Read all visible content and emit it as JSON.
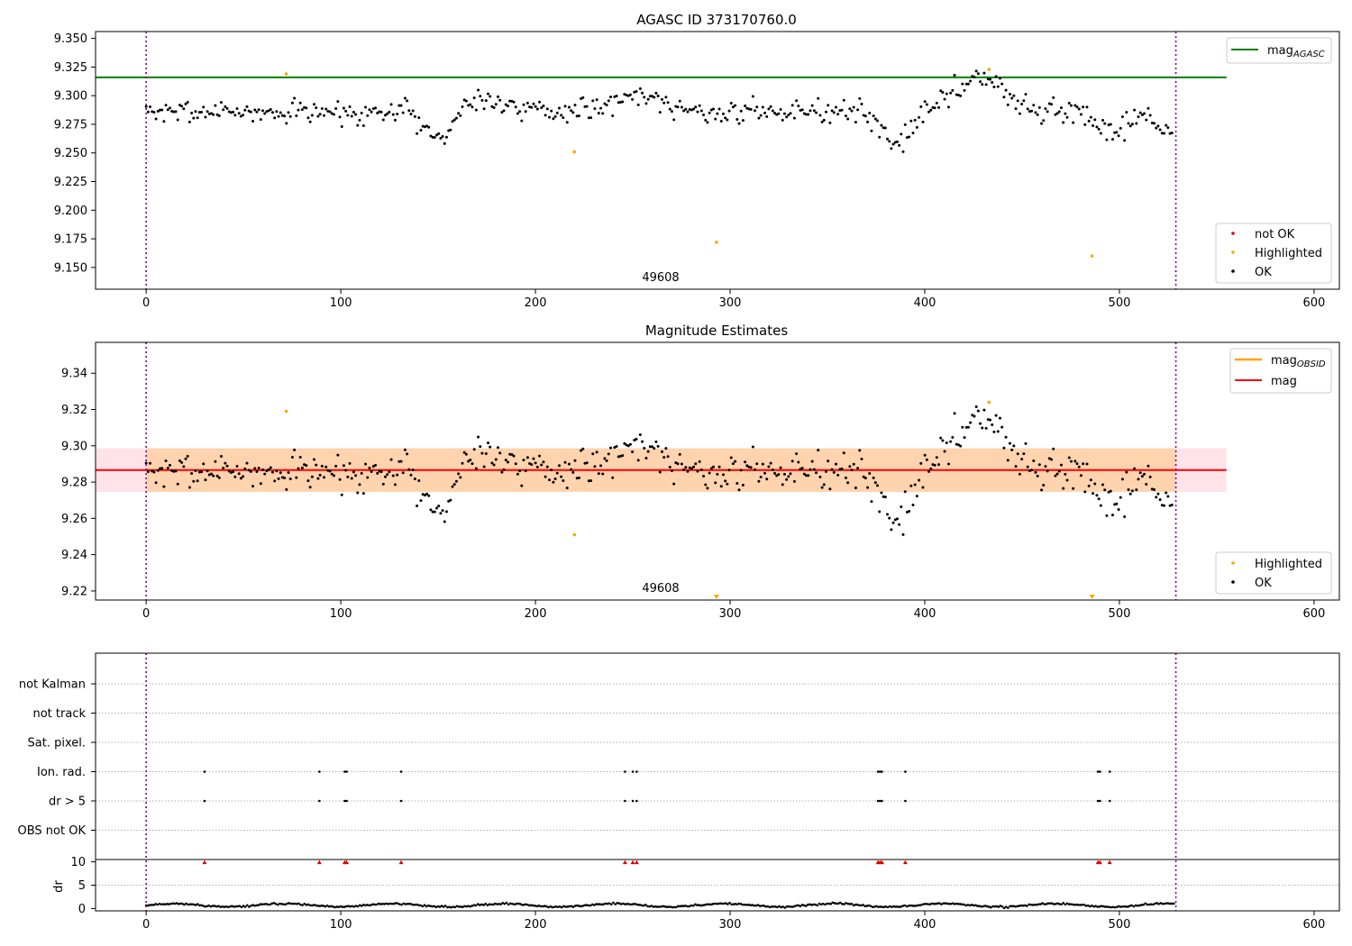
{
  "figure": {
    "title_top": "AGASC ID 373170760.0",
    "title_mid": "Magnitude Estimates",
    "obsid_label": "49608",
    "x_ticks": [
      0,
      100,
      200,
      300,
      400,
      500,
      600
    ],
    "xlim": [
      -26,
      613
    ],
    "boundary_x": [
      0,
      529
    ]
  },
  "chart_data": [
    {
      "type": "scatter",
      "title": "AGASC ID 373170760.0",
      "xlim": [
        -26,
        613
      ],
      "ylim": [
        9.131,
        9.356
      ],
      "y_ticks": [
        9.15,
        9.175,
        9.2,
        9.225,
        9.25,
        9.275,
        9.3,
        9.325,
        9.35
      ],
      "reference_lines": [
        {
          "name": "mag_AGASC",
          "y": 9.316,
          "x_range": [
            -26,
            555
          ],
          "color": "#008000"
        }
      ],
      "highlighted_points": [
        [
          72,
          9.319
        ],
        [
          220,
          9.251
        ],
        [
          293,
          9.172
        ],
        [
          433,
          9.323
        ],
        [
          486,
          9.16
        ]
      ],
      "ok_series": {
        "mean": 9.286,
        "x_range": [
          0,
          527
        ],
        "n": 520,
        "dips": [
          [
            150,
            9.262
          ],
          [
            385,
            9.258
          ],
          [
            497,
            9.262
          ],
          [
            525,
            9.268
          ]
        ],
        "peaks": [
          [
            175,
            9.305
          ],
          [
            252,
            9.312
          ],
          [
            425,
            9.312
          ],
          [
            432,
            9.312
          ]
        ]
      },
      "legend": {
        "location": "lower-right",
        "entries": [
          {
            "label": "not OK",
            "color": "#e00000"
          },
          {
            "label": "Highlighted",
            "color": "#ffa500"
          },
          {
            "label": "OK",
            "color": "#000000"
          }
        ]
      },
      "legend_top": {
        "location": "top-right",
        "entries": [
          {
            "label": "mag",
            "sub": "AGASC",
            "color": "#008000"
          }
        ]
      }
    },
    {
      "type": "scatter",
      "title": "Magnitude Estimates",
      "xlim": [
        -26,
        613
      ],
      "ylim": [
        9.215,
        9.357
      ],
      "y_ticks": [
        9.22,
        9.24,
        9.26,
        9.28,
        9.3,
        9.32,
        9.34
      ],
      "mag_line": {
        "y": 9.2866,
        "color": "#ff0000"
      },
      "mag_band": {
        "y_range": [
          9.2746,
          9.2986
        ],
        "x_range": [
          -26,
          555
        ],
        "color": "#ffc0cb"
      },
      "mag_obsid_band": {
        "y_range": [
          9.2746,
          9.2986
        ],
        "x_range": [
          0,
          529
        ],
        "color": "#ffa500"
      },
      "highlighted_points": [
        [
          72,
          9.319
        ],
        [
          220,
          9.251
        ],
        [
          433,
          9.324
        ]
      ],
      "off_scale_markers": [
        293,
        486
      ],
      "legend": {
        "location": "lower-right",
        "entries": [
          {
            "label": "Highlighted",
            "color": "#ffa500"
          },
          {
            "label": "OK",
            "color": "#000000"
          }
        ]
      },
      "legend_top": {
        "location": "top-right",
        "entries": [
          {
            "label": "mag",
            "sub": "OBSID",
            "color": "#ffa500"
          },
          {
            "label": "mag",
            "sub": "",
            "color": "#ff0000"
          }
        ]
      }
    },
    {
      "type": "scatter",
      "title": "",
      "flag_rows": [
        "not Kalman",
        "not track",
        "Sat. pixel.",
        "Ion. rad.",
        "dr > 5",
        "OBS not OK"
      ],
      "flag_points": {
        "Ion. rad.": [
          30,
          89,
          102,
          103,
          131,
          246,
          250,
          252,
          376,
          377,
          378,
          390,
          489,
          490,
          495
        ],
        "dr > 5": [
          30,
          89,
          102,
          103,
          131,
          246,
          250,
          252,
          376,
          377,
          378,
          390,
          489,
          490,
          495
        ]
      },
      "dr_axis": {
        "label": "dr",
        "ylim": [
          -0.5,
          10.5
        ],
        "y_ticks": [
          0,
          5,
          10
        ]
      },
      "dr_capped_points": [
        30,
        89,
        102,
        103,
        131,
        246,
        250,
        252,
        376,
        377,
        378,
        390,
        489,
        490,
        495
      ],
      "dr_series": {
        "mean": 0.7,
        "range": [
          0.0,
          1.7
        ],
        "x_range": [
          0,
          528
        ]
      }
    }
  ]
}
